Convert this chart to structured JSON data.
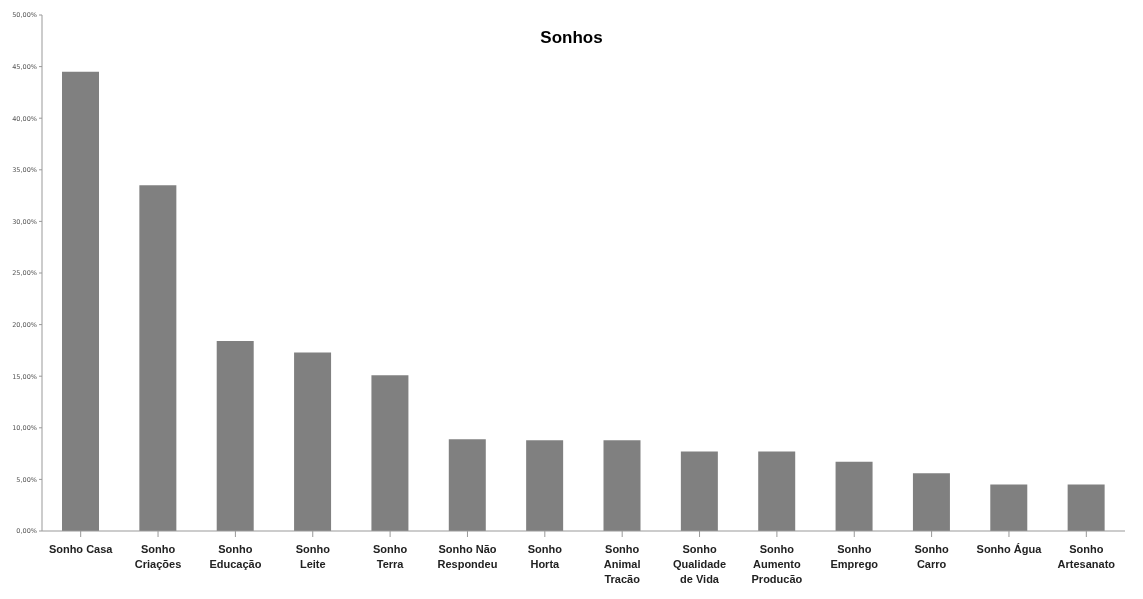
{
  "chart_data": {
    "type": "bar",
    "title": "Sonhos",
    "categories": [
      "Sonho Casa",
      "Sonho Criações",
      "Sonho Educação",
      "Sonho Leite",
      "Sonho Terra",
      "Sonho Não Respondeu",
      "Sonho Horta",
      "Sonho Animal Tracão",
      "Sonho Qualidade de Vida",
      "Sonho Aumento Producão",
      "Sonho Emprego",
      "Sonho Carro",
      "Sonho Água",
      "Sonho Artesanato"
    ],
    "values": [
      44.5,
      33.5,
      18.4,
      17.3,
      15.1,
      8.9,
      8.8,
      8.8,
      7.7,
      7.7,
      6.7,
      5.6,
      4.5,
      4.5
    ],
    "color": "#808080",
    "ylim": [
      0,
      50
    ],
    "yticks": [
      {
        "value": 0,
        "label": "0,00%"
      },
      {
        "value": 5,
        "label": "5,00%"
      },
      {
        "value": 10,
        "label": "10,00%"
      },
      {
        "value": 15,
        "label": "15,00%"
      },
      {
        "value": 20,
        "label": "20,00%"
      },
      {
        "value": 25,
        "label": "25,00%"
      },
      {
        "value": 30,
        "label": "30,00%"
      },
      {
        "value": 35,
        "label": "35,00%"
      },
      {
        "value": 40,
        "label": "40,00%"
      },
      {
        "value": 45,
        "label": "45,00%"
      },
      {
        "value": 50,
        "label": "50,00%"
      }
    ],
    "grid": false,
    "legend": false
  }
}
